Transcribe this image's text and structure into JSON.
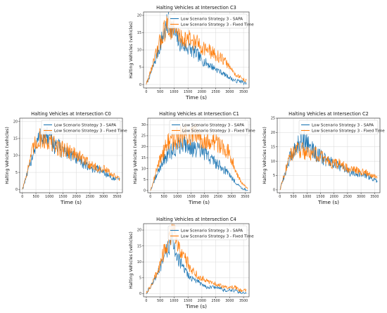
{
  "colors": {
    "sapa": "#1f77b4",
    "fixed": "#ff7f0e"
  },
  "chart_data": [
    {
      "id": "C3",
      "type": "line",
      "title": "Halting Vehicles at Intersection C3",
      "xlabel": "Time (s)",
      "ylabel": "Halting Vehicles (vehicles)",
      "xlim": [
        -100,
        3700
      ],
      "ylim": [
        -1,
        21
      ],
      "xticks": [
        0,
        500,
        1000,
        1500,
        2000,
        2500,
        3000,
        3500
      ],
      "yticks": [
        0,
        5,
        10,
        15,
        20
      ],
      "legend": "top-right",
      "grid": true,
      "series": [
        {
          "name": "Low Scenario Strategy 3 - SAPA",
          "points": [
            [
              0,
              0
            ],
            [
              200,
              4
            ],
            [
              400,
              9
            ],
            [
              600,
              14
            ],
            [
              800,
              18
            ],
            [
              1000,
              15
            ],
            [
              1200,
              12
            ],
            [
              1400,
              11
            ],
            [
              1600,
              10
            ],
            [
              1800,
              9
            ],
            [
              2000,
              7
            ],
            [
              2200,
              6
            ],
            [
              2400,
              5
            ],
            [
              2600,
              4
            ],
            [
              2800,
              3
            ],
            [
              3000,
              2
            ],
            [
              3200,
              1
            ],
            [
              3400,
              1
            ],
            [
              3600,
              0
            ]
          ]
        },
        {
          "name": "Low Scenario Strategy 3 - Fixed Time",
          "points": [
            [
              0,
              0
            ],
            [
              200,
              5
            ],
            [
              400,
              10
            ],
            [
              600,
              15
            ],
            [
              800,
              17
            ],
            [
              1000,
              16
            ],
            [
              1200,
              14
            ],
            [
              1400,
              13
            ],
            [
              1600,
              13
            ],
            [
              1800,
              12
            ],
            [
              2000,
              11
            ],
            [
              2200,
              10
            ],
            [
              2400,
              9
            ],
            [
              2600,
              8
            ],
            [
              2800,
              7
            ],
            [
              3000,
              5
            ],
            [
              3200,
              3
            ],
            [
              3400,
              2
            ],
            [
              3600,
              1
            ]
          ]
        }
      ]
    },
    {
      "id": "C0",
      "type": "line",
      "title": "Halting Vehicles at Intersection C0",
      "xlabel": "Time (s)",
      "ylabel": "Halting Vehicles (vehicles)",
      "xlim": [
        -100,
        3700
      ],
      "ylim": [
        -1,
        21
      ],
      "xticks": [
        0,
        500,
        1000,
        1500,
        2000,
        2500,
        3000,
        3500
      ],
      "yticks": [
        0,
        5,
        10,
        15,
        20
      ],
      "legend": "top-right",
      "grid": true,
      "series": [
        {
          "name": "Low Scenario Strategy 3 - SAPA",
          "points": [
            [
              0,
              0
            ],
            [
              200,
              5
            ],
            [
              400,
              11
            ],
            [
              600,
              15
            ],
            [
              800,
              16
            ],
            [
              1000,
              15
            ],
            [
              1200,
              13
            ],
            [
              1400,
              12
            ],
            [
              1600,
              11
            ],
            [
              1800,
              10
            ],
            [
              2000,
              9
            ],
            [
              2200,
              8
            ],
            [
              2400,
              7
            ],
            [
              2600,
              6
            ],
            [
              2800,
              6
            ],
            [
              3000,
              5
            ],
            [
              3200,
              4
            ],
            [
              3400,
              3
            ],
            [
              3600,
              3
            ]
          ]
        },
        {
          "name": "Low Scenario Strategy 3 - Fixed Time",
          "points": [
            [
              0,
              0
            ],
            [
              200,
              6
            ],
            [
              400,
              12
            ],
            [
              600,
              15
            ],
            [
              800,
              15
            ],
            [
              1000,
              14
            ],
            [
              1200,
              13
            ],
            [
              1400,
              12
            ],
            [
              1600,
              12
            ],
            [
              1800,
              11
            ],
            [
              2000,
              10
            ],
            [
              2200,
              9
            ],
            [
              2400,
              8
            ],
            [
              2600,
              7
            ],
            [
              2800,
              6
            ],
            [
              3000,
              6
            ],
            [
              3200,
              5
            ],
            [
              3400,
              4
            ],
            [
              3600,
              3
            ]
          ]
        }
      ]
    },
    {
      "id": "C1",
      "type": "line",
      "title": "Halting Vehicles at Intersection C1",
      "xlabel": "Time (s)",
      "ylabel": "Halting Vehicles (vehicles)",
      "xlim": [
        -100,
        3700
      ],
      "ylim": [
        -1,
        33
      ],
      "xticks": [
        0,
        500,
        1000,
        1500,
        2000,
        2500,
        3000,
        3500
      ],
      "yticks": [
        0,
        5,
        10,
        15,
        20,
        25,
        30
      ],
      "legend": "top-right",
      "grid": true,
      "series": [
        {
          "name": "Low Scenario Strategy 3 - SAPA",
          "points": [
            [
              0,
              0
            ],
            [
              200,
              6
            ],
            [
              400,
              12
            ],
            [
              600,
              16
            ],
            [
              800,
              18
            ],
            [
              1000,
              20
            ],
            [
              1200,
              22
            ],
            [
              1400,
              21
            ],
            [
              1600,
              19
            ],
            [
              1800,
              18
            ],
            [
              2000,
              17
            ],
            [
              2200,
              15
            ],
            [
              2400,
              13
            ],
            [
              2600,
              11
            ],
            [
              2800,
              9
            ],
            [
              3000,
              6
            ],
            [
              3200,
              3
            ],
            [
              3400,
              1
            ],
            [
              3600,
              0
            ]
          ]
        },
        {
          "name": "Low Scenario Strategy 3 - Fixed Time",
          "points": [
            [
              0,
              0
            ],
            [
              200,
              8
            ],
            [
              400,
              16
            ],
            [
              600,
              21
            ],
            [
              800,
              23
            ],
            [
              1000,
              24
            ],
            [
              1200,
              25
            ],
            [
              1400,
              25
            ],
            [
              1600,
              25
            ],
            [
              1800,
              25
            ],
            [
              2000,
              24
            ],
            [
              2200,
              23
            ],
            [
              2400,
              22
            ],
            [
              2600,
              21
            ],
            [
              2800,
              19
            ],
            [
              3000,
              15
            ],
            [
              3200,
              8
            ],
            [
              3400,
              3
            ],
            [
              3600,
              1
            ]
          ]
        }
      ]
    },
    {
      "id": "C2",
      "type": "line",
      "title": "Halting Vehicles at Intersection C2",
      "xlabel": "Time (s)",
      "ylabel": "Halting Vehicles (vehicles)",
      "xlim": [
        -100,
        3700
      ],
      "ylim": [
        -1,
        25
      ],
      "xticks": [
        0,
        500,
        1000,
        1500,
        2000,
        2500,
        3000,
        3500
      ],
      "yticks": [
        0,
        5,
        10,
        15,
        20,
        25
      ],
      "legend": "top-right",
      "grid": true,
      "series": [
        {
          "name": "Low Scenario Strategy 3 - SAPA",
          "points": [
            [
              0,
              0
            ],
            [
              200,
              6
            ],
            [
              400,
              12
            ],
            [
              600,
              15
            ],
            [
              800,
              18
            ],
            [
              1000,
              17
            ],
            [
              1200,
              14
            ],
            [
              1400,
              12
            ],
            [
              1600,
              11
            ],
            [
              1800,
              10
            ],
            [
              2000,
              9
            ],
            [
              2200,
              8
            ],
            [
              2400,
              7
            ],
            [
              2600,
              6
            ],
            [
              2800,
              6
            ],
            [
              3000,
              5
            ],
            [
              3200,
              5
            ],
            [
              3400,
              4
            ],
            [
              3600,
              3
            ]
          ]
        },
        {
          "name": "Low Scenario Strategy 3 - Fixed Time",
          "points": [
            [
              0,
              0
            ],
            [
              200,
              7
            ],
            [
              400,
              12
            ],
            [
              600,
              14
            ],
            [
              800,
              14
            ],
            [
              1000,
              13
            ],
            [
              1200,
              13
            ],
            [
              1400,
              12
            ],
            [
              1600,
              11
            ],
            [
              1800,
              10
            ],
            [
              2000,
              9
            ],
            [
              2200,
              9
            ],
            [
              2400,
              8
            ],
            [
              2600,
              7
            ],
            [
              2800,
              7
            ],
            [
              3000,
              6
            ],
            [
              3200,
              6
            ],
            [
              3400,
              5
            ],
            [
              3600,
              5
            ]
          ]
        }
      ]
    },
    {
      "id": "C4",
      "type": "line",
      "title": "Halting Vehicles at Intersection C4",
      "xlabel": "Time (s)",
      "ylabel": "Halting Vehicles (vehicles)",
      "xlim": [
        -100,
        3700
      ],
      "ylim": [
        -1,
        22
      ],
      "xticks": [
        0,
        500,
        1000,
        1500,
        2000,
        2500,
        3000,
        3500
      ],
      "yticks": [
        0,
        5,
        10,
        15,
        20
      ],
      "legend": "top-right",
      "grid": true,
      "series": [
        {
          "name": "Low Scenario Strategy 3 - SAPA",
          "points": [
            [
              0,
              0
            ],
            [
              200,
              3
            ],
            [
              400,
              6
            ],
            [
              600,
              10
            ],
            [
              800,
              15
            ],
            [
              900,
              17
            ],
            [
              1000,
              15
            ],
            [
              1200,
              10
            ],
            [
              1400,
              7
            ],
            [
              1600,
              5
            ],
            [
              1800,
              4
            ],
            [
              2000,
              3
            ],
            [
              2200,
              2
            ],
            [
              2400,
              2
            ],
            [
              2600,
              2
            ],
            [
              2800,
              1
            ],
            [
              3000,
              1
            ],
            [
              3200,
              1
            ],
            [
              3400,
              0
            ],
            [
              3600,
              0
            ]
          ]
        },
        {
          "name": "Low Scenario Strategy 3 - Fixed Time",
          "points": [
            [
              0,
              0
            ],
            [
              200,
              3
            ],
            [
              400,
              7
            ],
            [
              600,
              12
            ],
            [
              800,
              17
            ],
            [
              1000,
              19
            ],
            [
              1200,
              15
            ],
            [
              1400,
              11
            ],
            [
              1600,
              8
            ],
            [
              1800,
              6
            ],
            [
              2000,
              5
            ],
            [
              2200,
              4
            ],
            [
              2400,
              3
            ],
            [
              2600,
              3
            ],
            [
              2800,
              2
            ],
            [
              3000,
              2
            ],
            [
              3200,
              2
            ],
            [
              3400,
              1
            ],
            [
              3600,
              1
            ]
          ]
        }
      ]
    }
  ]
}
